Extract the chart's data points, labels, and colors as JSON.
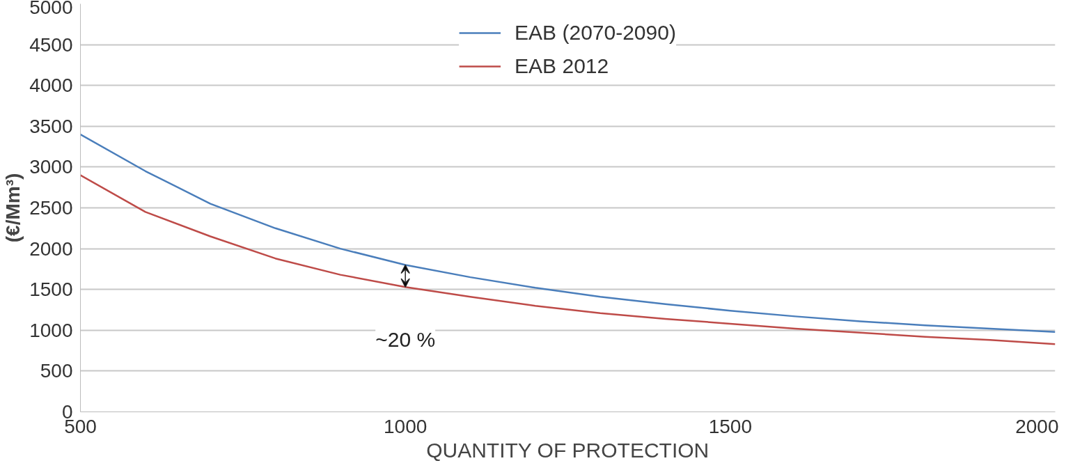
{
  "chart_data": {
    "type": "line",
    "xlabel": "QUANTITY OF PROTECTION",
    "ylabel": "(€/Mm³)",
    "x": [
      500,
      600,
      700,
      800,
      900,
      1000,
      1100,
      1200,
      1300,
      1400,
      1500,
      1600,
      1700,
      1800,
      1900,
      2000
    ],
    "series": [
      {
        "name": "EAB (2070-2090)",
        "color": "#4a7ebb",
        "values": [
          3400,
          2950,
          2550,
          2250,
          2000,
          1800,
          1650,
          1520,
          1410,
          1320,
          1240,
          1170,
          1110,
          1060,
          1020,
          980
        ]
      },
      {
        "name": "EAB 2012",
        "color": "#be4b48",
        "values": [
          2900,
          2450,
          2150,
          1880,
          1680,
          1530,
          1410,
          1300,
          1210,
          1140,
          1080,
          1020,
          970,
          920,
          880,
          830
        ]
      }
    ],
    "xlim": [
      500,
      2000
    ],
    "xticks": [
      500,
      1000,
      1500,
      2000
    ],
    "ylim": [
      0,
      5000
    ],
    "yticks": [
      0,
      500,
      1000,
      1500,
      2000,
      2500,
      3000,
      3500,
      4000,
      4500,
      5000
    ],
    "grid": "y",
    "legend": "top",
    "marker": "none",
    "line_style": "solid",
    "annotations": [
      "~20 %"
    ]
  }
}
